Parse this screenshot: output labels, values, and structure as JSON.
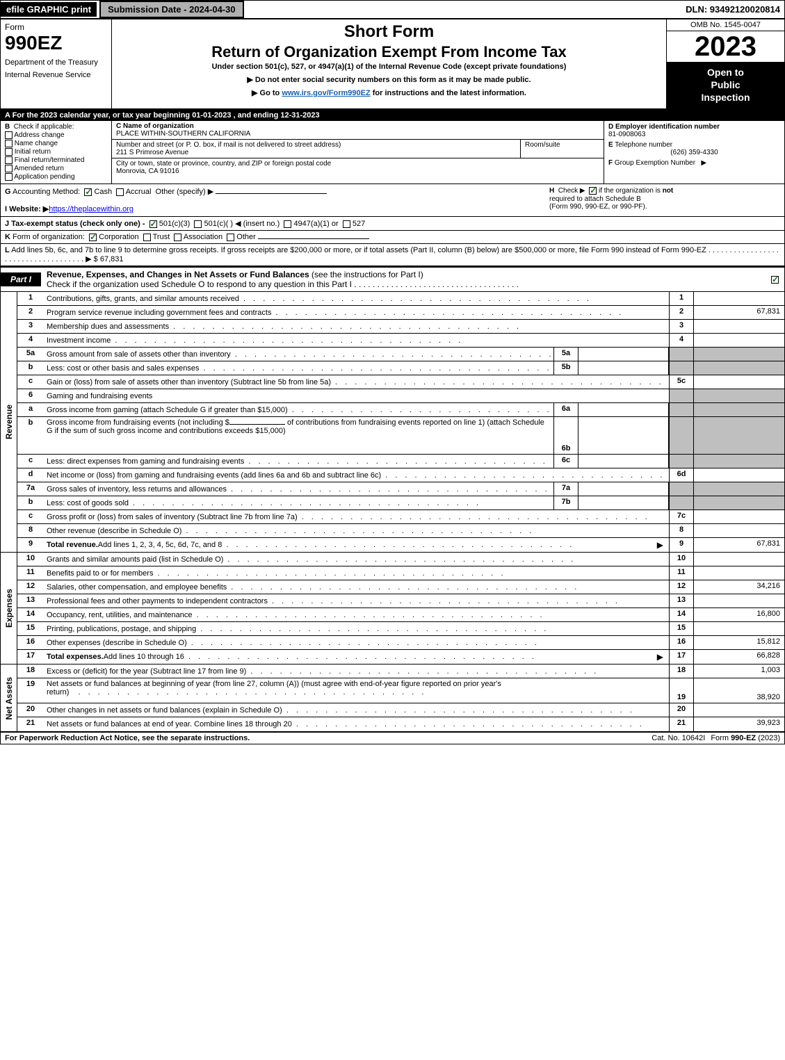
{
  "topbar": {
    "efile": "efile GRAPHIC print",
    "submission": "Submission Date - 2024-04-30",
    "dln": "DLN: 93492120020814"
  },
  "header": {
    "form_word": "Form",
    "form_number": "990EZ",
    "dept1": "Department of the Treasury",
    "dept2": "Internal Revenue Service",
    "short_form": "Short Form",
    "title": "Return of Organization Exempt From Income Tax",
    "subtitle": "Under section 501(c), 527, or 4947(a)(1) of the Internal Revenue Code (except private foundations)",
    "instr1": "▶ Do not enter social security numbers on this form as it may be made public.",
    "instr2_pre": "▶ Go to ",
    "instr2_link": "www.irs.gov/Form990EZ",
    "instr2_post": " for instructions and the latest information.",
    "omb": "OMB No. 1545-0047",
    "year": "2023",
    "open1": "Open to",
    "open2": "Public",
    "open3": "Inspection"
  },
  "section_a": "A  For the 2023 calendar year, or tax year beginning 01-01-2023 , and ending 12-31-2023",
  "block_b": {
    "b_label": "B",
    "b_text": "Check if applicable:",
    "checks": [
      "Address change",
      "Name change",
      "Initial return",
      "Final return/terminated",
      "Amended return",
      "Application pending"
    ],
    "c_label": "C",
    "c_text": "Name of organization",
    "c_name": "PLACE WITHIN-SOUTHERN CALIFORNIA",
    "street_label": "Number and street (or P. O. box, if mail is not delivered to street address)",
    "street": "211 S Primrose Avenue",
    "room_label": "Room/suite",
    "city_label": "City or town, state or province, country, and ZIP or foreign postal code",
    "city": "Monrovia, CA  91016",
    "d_label": "D Employer identification number",
    "d_val": "81-0908063",
    "e_label": "E",
    "e_text": "Telephone number",
    "e_val": "(626) 359-4330",
    "f_label": "F",
    "f_text": "Group Exemption Number",
    "f_arrow": "▶"
  },
  "row_g": {
    "g_label": "G",
    "g_text": "Accounting Method:",
    "g_cash": "Cash",
    "g_accrual": "Accrual",
    "g_other": "Other (specify) ▶",
    "h_label": "H",
    "h_text1": "Check ▶",
    "h_text2": "if the organization is ",
    "h_not": "not",
    "h_text3": "required to attach Schedule B",
    "h_text4": "(Form 990, 990-EZ, or 990-PF)."
  },
  "row_i": {
    "i_label": "I Website: ▶",
    "i_link": "https://theplacewithin.org"
  },
  "row_j": {
    "text": "J Tax-exempt status (check only one) -",
    "opt1": "501(c)(3)",
    "opt2": "501(c)(  ) ◀ (insert no.)",
    "opt3": "4947(a)(1) or",
    "opt4": "527"
  },
  "row_k": {
    "k_label": "K",
    "k_text": "Form of organization:",
    "opts": [
      "Corporation",
      "Trust",
      "Association",
      "Other"
    ]
  },
  "row_l": {
    "l_label": "L",
    "l_text": "Add lines 5b, 6c, and 7b to line 9 to determine gross receipts. If gross receipts are $200,000 or more, or if total assets (Part II, column (B) below) are $500,000 or more, file Form 990 instead of Form 990-EZ",
    "l_arrow": "▶ $",
    "l_val": "67,831"
  },
  "part1": {
    "label": "Part I",
    "title": "Revenue, Expenses, and Changes in Net Assets or Fund Balances",
    "title_paren": "(see the instructions for Part I)",
    "subtitle": "Check if the organization used Schedule O to respond to any question in this Part I"
  },
  "revenue_label": "Revenue",
  "expenses_label": "Expenses",
  "netassets_label": "Net Assets",
  "lines_revenue": [
    {
      "num": "1",
      "desc": "Contributions, gifts, grants, and similar amounts received",
      "rnum": "1",
      "val": ""
    },
    {
      "num": "2",
      "desc": "Program service revenue including government fees and contracts",
      "rnum": "2",
      "val": "67,831"
    },
    {
      "num": "3",
      "desc": "Membership dues and assessments",
      "rnum": "3",
      "val": ""
    },
    {
      "num": "4",
      "desc": "Investment income",
      "rnum": "4",
      "val": ""
    }
  ],
  "line5a": {
    "num": "5a",
    "desc": "Gross amount from sale of assets other than inventory",
    "sub": "5a"
  },
  "line5b": {
    "num": "b",
    "desc": "Less: cost or other basis and sales expenses",
    "sub": "5b"
  },
  "line5c": {
    "num": "c",
    "desc": "Gain or (loss) from sale of assets other than inventory (Subtract line 5b from line 5a)",
    "rnum": "5c"
  },
  "line6": {
    "num": "6",
    "desc": "Gaming and fundraising events"
  },
  "line6a": {
    "num": "a",
    "desc": "Gross income from gaming (attach Schedule G if greater than $15,000)",
    "sub": "6a"
  },
  "line6b": {
    "num": "b",
    "desc1": "Gross income from fundraising events (not including $",
    "desc2": "of contributions from fundraising events reported on line 1) (attach Schedule G if the sum of such gross income and contributions exceeds $15,000)",
    "sub": "6b"
  },
  "line6c": {
    "num": "c",
    "desc": "Less: direct expenses from gaming and fundraising events",
    "sub": "6c"
  },
  "line6d": {
    "num": "d",
    "desc": "Net income or (loss) from gaming and fundraising events (add lines 6a and 6b and subtract line 6c)",
    "rnum": "6d"
  },
  "line7a": {
    "num": "7a",
    "desc": "Gross sales of inventory, less returns and allowances",
    "sub": "7a"
  },
  "line7b": {
    "num": "b",
    "desc": "Less: cost of goods sold",
    "sub": "7b"
  },
  "line7c": {
    "num": "c",
    "desc": "Gross profit or (loss) from sales of inventory (Subtract line 7b from line 7a)",
    "rnum": "7c"
  },
  "line8": {
    "num": "8",
    "desc": "Other revenue (describe in Schedule O)",
    "rnum": "8"
  },
  "line9": {
    "num": "9",
    "desc": "Total revenue.",
    "desc2": " Add lines 1, 2, 3, 4, 5c, 6d, 7c, and 8",
    "rnum": "9",
    "val": "67,831"
  },
  "lines_expenses": [
    {
      "num": "10",
      "desc": "Grants and similar amounts paid (list in Schedule O)",
      "rnum": "10",
      "val": ""
    },
    {
      "num": "11",
      "desc": "Benefits paid to or for members",
      "rnum": "11",
      "val": ""
    },
    {
      "num": "12",
      "desc": "Salaries, other compensation, and employee benefits",
      "rnum": "12",
      "val": "34,216"
    },
    {
      "num": "13",
      "desc": "Professional fees and other payments to independent contractors",
      "rnum": "13",
      "val": ""
    },
    {
      "num": "14",
      "desc": "Occupancy, rent, utilities, and maintenance",
      "rnum": "14",
      "val": "16,800"
    },
    {
      "num": "15",
      "desc": "Printing, publications, postage, and shipping",
      "rnum": "15",
      "val": ""
    },
    {
      "num": "16",
      "desc": "Other expenses (describe in Schedule O)",
      "rnum": "16",
      "val": "15,812"
    }
  ],
  "line17": {
    "num": "17",
    "desc": "Total expenses.",
    "desc2": " Add lines 10 through 16",
    "rnum": "17",
    "val": "66,828"
  },
  "lines_netassets": [
    {
      "num": "18",
      "desc": "Excess or (deficit) for the year (Subtract line 17 from line 9)",
      "rnum": "18",
      "val": "1,003"
    },
    {
      "num": "19",
      "desc": "Net assets or fund balances at beginning of year (from line 27, column (A)) (must agree with end-of-year figure reported on prior year's return)",
      "rnum": "19",
      "val": "38,920"
    },
    {
      "num": "20",
      "desc": "Other changes in net assets or fund balances (explain in Schedule O)",
      "rnum": "20",
      "val": ""
    },
    {
      "num": "21",
      "desc": "Net assets or fund balances at end of year. Combine lines 18 through 20",
      "rnum": "21",
      "val": "39,923"
    }
  ],
  "footer": {
    "left": "For Paperwork Reduction Act Notice, see the separate instructions.",
    "center": "Cat. No. 10642I",
    "right_pre": "Form ",
    "right_bold": "990-EZ",
    "right_post": " (2023)"
  },
  "dots": ". . . . . . . . . . . . . . . . . . . . . . . . . . . . . . . . . . . ."
}
